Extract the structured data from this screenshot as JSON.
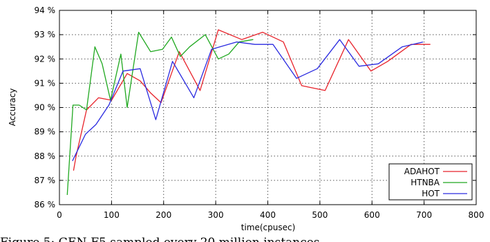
{
  "chart_data": {
    "type": "line",
    "title": "",
    "xlabel": "time(cpusec)",
    "ylabel": "Accuracy",
    "xlim": [
      0,
      800
    ],
    "ylim": [
      86,
      94
    ],
    "x_ticks": [
      0,
      100,
      200,
      300,
      400,
      500,
      600,
      700,
      800
    ],
    "y_ticks": [
      86,
      87,
      88,
      89,
      90,
      91,
      92,
      93,
      94
    ],
    "y_tick_labels": [
      "86 %",
      "87 %",
      "88 %",
      "89 %",
      "90 %",
      "91 %",
      "92 %",
      "93 %",
      "94 %"
    ],
    "grid": true,
    "legend": "bottom-right",
    "series": [
      {
        "name": "ADAHOT",
        "color": "#e8222a",
        "points": [
          [
            27,
            87.4
          ],
          [
            32,
            88.0
          ],
          [
            52,
            89.9
          ],
          [
            75,
            90.4
          ],
          [
            100,
            90.3
          ],
          [
            130,
            91.4
          ],
          [
            155,
            91.1
          ],
          [
            175,
            90.6
          ],
          [
            195,
            90.2
          ],
          [
            230,
            92.3
          ],
          [
            270,
            90.7
          ],
          [
            305,
            93.2
          ],
          [
            350,
            92.8
          ],
          [
            390,
            93.1
          ],
          [
            430,
            92.7
          ],
          [
            465,
            90.9
          ],
          [
            510,
            90.7
          ],
          [
            555,
            92.8
          ],
          [
            598,
            91.5
          ],
          [
            630,
            91.9
          ],
          [
            675,
            92.6
          ],
          [
            712,
            92.6
          ]
        ]
      },
      {
        "name": "HTNBA",
        "color": "#1fa81f",
        "points": [
          [
            15,
            86.4
          ],
          [
            26,
            90.1
          ],
          [
            38,
            90.1
          ],
          [
            52,
            89.9
          ],
          [
            68,
            92.5
          ],
          [
            82,
            91.8
          ],
          [
            98,
            90.3
          ],
          [
            118,
            92.2
          ],
          [
            130,
            90.0
          ],
          [
            152,
            93.1
          ],
          [
            175,
            92.3
          ],
          [
            198,
            92.4
          ],
          [
            215,
            92.9
          ],
          [
            232,
            92.1
          ],
          [
            250,
            92.5
          ],
          [
            280,
            93.0
          ],
          [
            305,
            92.0
          ],
          [
            325,
            92.2
          ],
          [
            345,
            92.7
          ],
          [
            372,
            92.8
          ]
        ]
      },
      {
        "name": "HOT",
        "color": "#2a2ae0",
        "points": [
          [
            25,
            87.8
          ],
          [
            50,
            88.9
          ],
          [
            70,
            89.3
          ],
          [
            95,
            90.1
          ],
          [
            122,
            91.5
          ],
          [
            155,
            91.6
          ],
          [
            185,
            89.5
          ],
          [
            217,
            91.9
          ],
          [
            258,
            90.4
          ],
          [
            292,
            92.4
          ],
          [
            340,
            92.7
          ],
          [
            375,
            92.6
          ],
          [
            410,
            92.6
          ],
          [
            455,
            91.2
          ],
          [
            495,
            91.6
          ],
          [
            538,
            92.8
          ],
          [
            575,
            91.7
          ],
          [
            612,
            91.8
          ],
          [
            658,
            92.5
          ],
          [
            698,
            92.7
          ]
        ]
      }
    ]
  },
  "caption": "Figure 5: GEN-F5 sampled every 20 million instances"
}
